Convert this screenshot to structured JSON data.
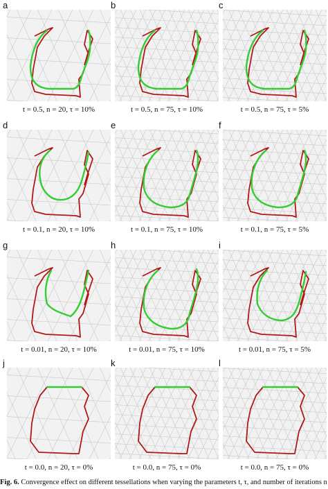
{
  "panels": [
    {
      "letter": "a",
      "label": "t = 0.5, n = 20, τ = 10%",
      "t": "0.5",
      "n": 20,
      "tau": "10%"
    },
    {
      "letter": "b",
      "label": "t = 0.5, n = 75, τ = 10%",
      "t": "0.5",
      "n": 75,
      "tau": "10%"
    },
    {
      "letter": "c",
      "label": "t = 0.5, n = 75, τ = 5%",
      "t": "0.5",
      "n": 75,
      "tau": "5%"
    },
    {
      "letter": "d",
      "label": "t = 0.1, n = 20, τ = 10%",
      "t": "0.1",
      "n": 20,
      "tau": "10%"
    },
    {
      "letter": "e",
      "label": "t = 0.1, n = 75, τ = 10%",
      "t": "0.1",
      "n": 75,
      "tau": "10%"
    },
    {
      "letter": "f",
      "label": "t = 0.1, n = 75, τ = 5%",
      "t": "0.1",
      "n": 75,
      "tau": "5%"
    },
    {
      "letter": "g",
      "label": "t = 0.01, n = 20, τ = 10%",
      "t": "0.01",
      "n": 20,
      "tau": "10%"
    },
    {
      "letter": "h",
      "label": "t = 0.01, n = 75, τ = 10%",
      "t": "0.01",
      "n": 75,
      "tau": "10%"
    },
    {
      "letter": "i",
      "label": "t = 0.01, n = 75, τ = 5%",
      "t": "0.01",
      "n": 75,
      "tau": "5%"
    },
    {
      "letter": "j",
      "label": "t = 0.0, n = 20, τ = 0%",
      "t": "0.0",
      "n": 20,
      "tau": "0%"
    },
    {
      "letter": "k",
      "label": "t = 0.0, n = 75, τ = 0%",
      "t": "0.0",
      "n": 75,
      "tau": "0%"
    },
    {
      "letter": "l",
      "label": "t = 0.0, n = 75, τ = 0%",
      "t": "0.0",
      "n": 75,
      "tau": "0%"
    }
  ],
  "caption": {
    "prefix": "Fig. 6.",
    "text": "Convergence effect on different tessellations when varying the parameters t, τ, and number of iterations n for a short curve."
  },
  "colors": {
    "original_curve": "#b01818",
    "geodesic_curve": "#33cc33",
    "mesh": "#c9c9c9",
    "background": "#f2f2f2"
  }
}
